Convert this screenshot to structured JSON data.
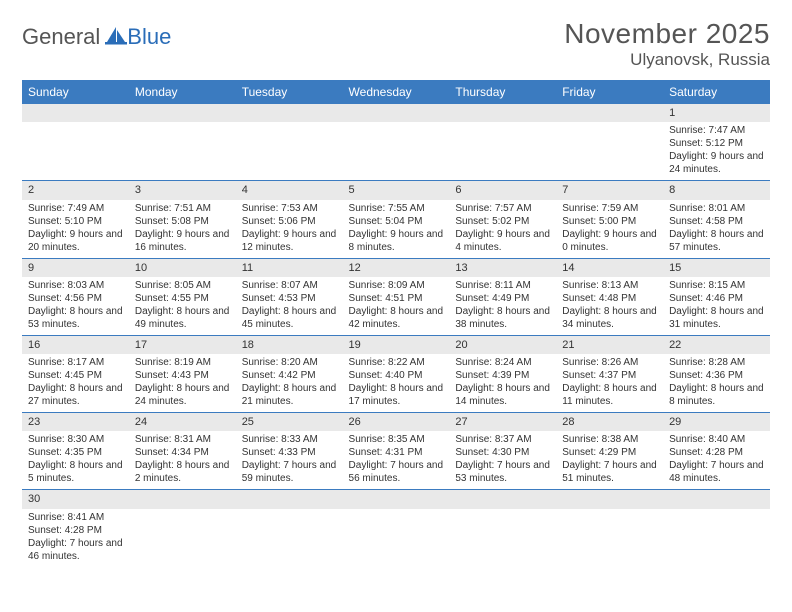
{
  "logo": {
    "general": "General",
    "blue": "Blue"
  },
  "title": "November 2025",
  "location": "Ulyanovsk, Russia",
  "dayHeaders": [
    "Sunday",
    "Monday",
    "Tuesday",
    "Wednesday",
    "Thursday",
    "Friday",
    "Saturday"
  ],
  "colors": {
    "headerBg": "#3b7bc0",
    "rowStripe": "#e9e9e9",
    "brandBlue": "#2a6db8"
  },
  "weeks": [
    [
      null,
      null,
      null,
      null,
      null,
      null,
      {
        "n": "1",
        "sr": "Sunrise: 7:47 AM",
        "ss": "Sunset: 5:12 PM",
        "dl": "Daylight: 9 hours and 24 minutes."
      }
    ],
    [
      {
        "n": "2",
        "sr": "Sunrise: 7:49 AM",
        "ss": "Sunset: 5:10 PM",
        "dl": "Daylight: 9 hours and 20 minutes."
      },
      {
        "n": "3",
        "sr": "Sunrise: 7:51 AM",
        "ss": "Sunset: 5:08 PM",
        "dl": "Daylight: 9 hours and 16 minutes."
      },
      {
        "n": "4",
        "sr": "Sunrise: 7:53 AM",
        "ss": "Sunset: 5:06 PM",
        "dl": "Daylight: 9 hours and 12 minutes."
      },
      {
        "n": "5",
        "sr": "Sunrise: 7:55 AM",
        "ss": "Sunset: 5:04 PM",
        "dl": "Daylight: 9 hours and 8 minutes."
      },
      {
        "n": "6",
        "sr": "Sunrise: 7:57 AM",
        "ss": "Sunset: 5:02 PM",
        "dl": "Daylight: 9 hours and 4 minutes."
      },
      {
        "n": "7",
        "sr": "Sunrise: 7:59 AM",
        "ss": "Sunset: 5:00 PM",
        "dl": "Daylight: 9 hours and 0 minutes."
      },
      {
        "n": "8",
        "sr": "Sunrise: 8:01 AM",
        "ss": "Sunset: 4:58 PM",
        "dl": "Daylight: 8 hours and 57 minutes."
      }
    ],
    [
      {
        "n": "9",
        "sr": "Sunrise: 8:03 AM",
        "ss": "Sunset: 4:56 PM",
        "dl": "Daylight: 8 hours and 53 minutes."
      },
      {
        "n": "10",
        "sr": "Sunrise: 8:05 AM",
        "ss": "Sunset: 4:55 PM",
        "dl": "Daylight: 8 hours and 49 minutes."
      },
      {
        "n": "11",
        "sr": "Sunrise: 8:07 AM",
        "ss": "Sunset: 4:53 PM",
        "dl": "Daylight: 8 hours and 45 minutes."
      },
      {
        "n": "12",
        "sr": "Sunrise: 8:09 AM",
        "ss": "Sunset: 4:51 PM",
        "dl": "Daylight: 8 hours and 42 minutes."
      },
      {
        "n": "13",
        "sr": "Sunrise: 8:11 AM",
        "ss": "Sunset: 4:49 PM",
        "dl": "Daylight: 8 hours and 38 minutes."
      },
      {
        "n": "14",
        "sr": "Sunrise: 8:13 AM",
        "ss": "Sunset: 4:48 PM",
        "dl": "Daylight: 8 hours and 34 minutes."
      },
      {
        "n": "15",
        "sr": "Sunrise: 8:15 AM",
        "ss": "Sunset: 4:46 PM",
        "dl": "Daylight: 8 hours and 31 minutes."
      }
    ],
    [
      {
        "n": "16",
        "sr": "Sunrise: 8:17 AM",
        "ss": "Sunset: 4:45 PM",
        "dl": "Daylight: 8 hours and 27 minutes."
      },
      {
        "n": "17",
        "sr": "Sunrise: 8:19 AM",
        "ss": "Sunset: 4:43 PM",
        "dl": "Daylight: 8 hours and 24 minutes."
      },
      {
        "n": "18",
        "sr": "Sunrise: 8:20 AM",
        "ss": "Sunset: 4:42 PM",
        "dl": "Daylight: 8 hours and 21 minutes."
      },
      {
        "n": "19",
        "sr": "Sunrise: 8:22 AM",
        "ss": "Sunset: 4:40 PM",
        "dl": "Daylight: 8 hours and 17 minutes."
      },
      {
        "n": "20",
        "sr": "Sunrise: 8:24 AM",
        "ss": "Sunset: 4:39 PM",
        "dl": "Daylight: 8 hours and 14 minutes."
      },
      {
        "n": "21",
        "sr": "Sunrise: 8:26 AM",
        "ss": "Sunset: 4:37 PM",
        "dl": "Daylight: 8 hours and 11 minutes."
      },
      {
        "n": "22",
        "sr": "Sunrise: 8:28 AM",
        "ss": "Sunset: 4:36 PM",
        "dl": "Daylight: 8 hours and 8 minutes."
      }
    ],
    [
      {
        "n": "23",
        "sr": "Sunrise: 8:30 AM",
        "ss": "Sunset: 4:35 PM",
        "dl": "Daylight: 8 hours and 5 minutes."
      },
      {
        "n": "24",
        "sr": "Sunrise: 8:31 AM",
        "ss": "Sunset: 4:34 PM",
        "dl": "Daylight: 8 hours and 2 minutes."
      },
      {
        "n": "25",
        "sr": "Sunrise: 8:33 AM",
        "ss": "Sunset: 4:33 PM",
        "dl": "Daylight: 7 hours and 59 minutes."
      },
      {
        "n": "26",
        "sr": "Sunrise: 8:35 AM",
        "ss": "Sunset: 4:31 PM",
        "dl": "Daylight: 7 hours and 56 minutes."
      },
      {
        "n": "27",
        "sr": "Sunrise: 8:37 AM",
        "ss": "Sunset: 4:30 PM",
        "dl": "Daylight: 7 hours and 53 minutes."
      },
      {
        "n": "28",
        "sr": "Sunrise: 8:38 AM",
        "ss": "Sunset: 4:29 PM",
        "dl": "Daylight: 7 hours and 51 minutes."
      },
      {
        "n": "29",
        "sr": "Sunrise: 8:40 AM",
        "ss": "Sunset: 4:28 PM",
        "dl": "Daylight: 7 hours and 48 minutes."
      }
    ],
    [
      {
        "n": "30",
        "sr": "Sunrise: 8:41 AM",
        "ss": "Sunset: 4:28 PM",
        "dl": "Daylight: 7 hours and 46 minutes."
      },
      null,
      null,
      null,
      null,
      null,
      null
    ]
  ]
}
